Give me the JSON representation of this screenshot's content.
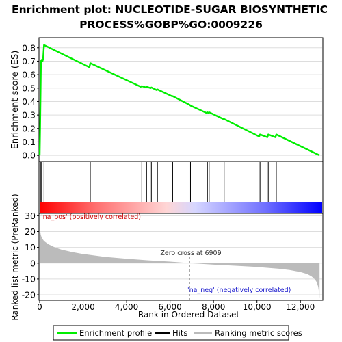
{
  "title_lines": [
    "Enrichment plot: NUCLEOTIDE-SUGAR BIOSYNTHETIC",
    "PROCESS%GOBP%GO:0009226"
  ],
  "colors": {
    "es_line": "#00ee00",
    "hit": "#000000",
    "metric_fill": "#bbbbbb",
    "zero_cross": "#aaaaaa",
    "text_pos": "#cc0000",
    "text_neg": "#1a1acc",
    "grid": "#dddddd",
    "bar_stops": [
      "#ff0000",
      "#ff6f6f",
      "#ffd6d6",
      "#d6d6ff",
      "#6f6fff",
      "#0000ff"
    ]
  },
  "chart_data": [
    {
      "type": "line",
      "name": "enrichment-score",
      "ylabel": "Enrichment score (ES)",
      "xlim": [
        0,
        13000
      ],
      "ylim": [
        -0.04,
        0.87
      ],
      "yticks": [
        0.0,
        0.1,
        0.2,
        0.3,
        0.4,
        0.5,
        0.6,
        0.7,
        0.8
      ],
      "ytick_labels": [
        "0.0",
        "0.1",
        "0.2",
        "0.3",
        "0.4",
        "0.5",
        "0.6",
        "0.7",
        "0.8"
      ],
      "grid": true,
      "x": [
        0,
        20,
        40,
        60,
        90,
        130,
        160,
        200,
        2290,
        2330,
        4650,
        4700,
        4890,
        4920,
        5100,
        5140,
        5380,
        5420,
        6080,
        6120,
        6900,
        6940,
        7680,
        7720,
        7760,
        7800,
        8450,
        8490,
        10100,
        10140,
        10480,
        10520,
        10850,
        10890,
        12880
      ],
      "y": [
        0.0,
        0.21,
        0.45,
        0.7,
        0.71,
        0.7,
        0.72,
        0.82,
        0.655,
        0.685,
        0.51,
        0.515,
        0.505,
        0.51,
        0.5,
        0.505,
        0.485,
        0.49,
        0.44,
        0.44,
        0.375,
        0.37,
        0.315,
        0.32,
        0.315,
        0.32,
        0.27,
        0.27,
        0.14,
        0.155,
        0.135,
        0.155,
        0.135,
        0.155,
        0.0
      ]
    },
    {
      "type": "bar",
      "name": "hits",
      "x": [
        30,
        70,
        200,
        2330,
        4700,
        4920,
        5140,
        5420,
        6120,
        6940,
        7720,
        7800,
        8490,
        10140,
        10520,
        10890
      ]
    },
    {
      "type": "area",
      "name": "ranked-list-metric",
      "xlabel": "Rank in Ordered Dataset",
      "ylabel": "Ranked list metric (PreRanked)",
      "xlim": [
        0,
        13000
      ],
      "ylim": [
        -23,
        31
      ],
      "xticks": [
        0,
        2000,
        4000,
        6000,
        8000,
        10000,
        12000
      ],
      "xtick_labels": [
        "0",
        "2,000",
        "4,000",
        "6,000",
        "8,000",
        "10,000",
        "12,000"
      ],
      "yticks": [
        -20,
        -10,
        0,
        10,
        20,
        30
      ],
      "ytick_labels": [
        "-20",
        "-10",
        "0",
        "10",
        "20",
        "30"
      ],
      "x": [
        0,
        10,
        50,
        100,
        200,
        400,
        700,
        1000,
        1500,
        2000,
        3000,
        4000,
        5000,
        6000,
        6909,
        8000,
        9000,
        10000,
        11000,
        11500,
        12000,
        12300,
        12500,
        12650,
        12750,
        12820,
        12850,
        12870,
        12880
      ],
      "y": [
        30,
        22,
        18,
        16,
        14,
        12,
        10,
        8.6,
        7,
        5.8,
        4,
        2.8,
        1.8,
        1,
        0,
        -0.9,
        -1.6,
        -2.4,
        -3.5,
        -4.3,
        -5.6,
        -6.8,
        -8.2,
        -10,
        -12,
        -15,
        -18,
        -21,
        -22
      ],
      "zero_cross_x": 6909,
      "zero_cross_label": "Zero cross at 6909",
      "pos_label": "'na_pos' (positively correlated)",
      "neg_label": "'na_neg' (negatively correlated)"
    }
  ],
  "legend": {
    "placement": "bottom",
    "items": [
      {
        "label": "Enrichment profile",
        "swatch": "#00ee00"
      },
      {
        "label": "Hits",
        "swatch": "#000000"
      },
      {
        "label": "Ranking metric scores",
        "swatch": "#bbbbbb"
      }
    ]
  }
}
